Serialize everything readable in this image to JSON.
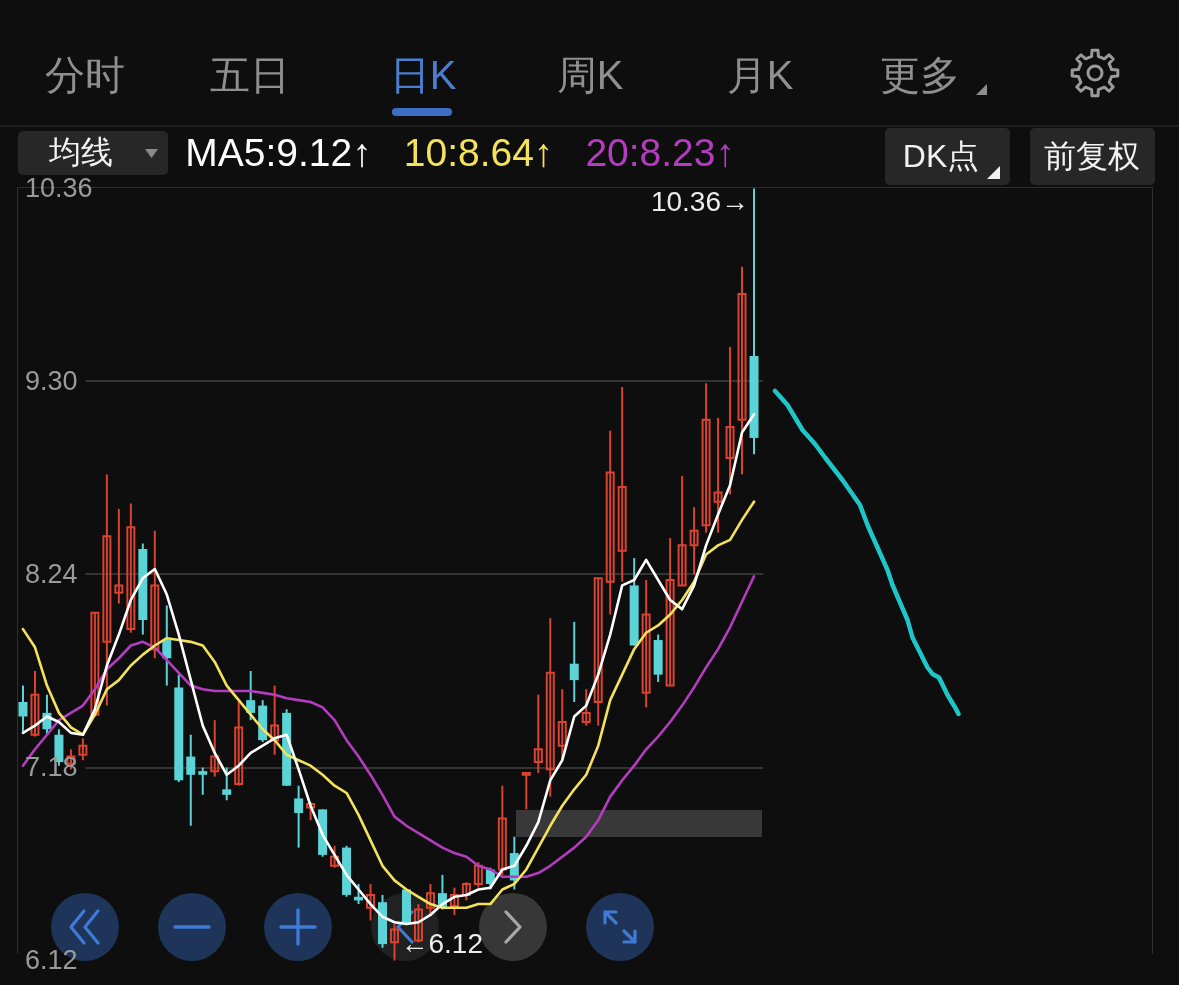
{
  "chart_data": {
    "type": "candlestick",
    "categories": [
      null,
      null,
      null,
      null,
      null,
      null,
      null,
      null,
      null,
      null,
      null,
      null,
      null,
      null,
      null,
      null,
      null,
      null,
      null,
      null,
      null,
      null,
      null,
      null,
      null,
      null,
      null,
      null,
      null,
      null,
      null,
      null,
      null,
      null,
      null,
      null,
      null,
      null,
      null,
      null,
      null,
      null,
      null,
      null,
      null,
      null,
      null,
      null,
      null,
      null,
      null,
      null,
      null,
      null,
      null,
      null,
      null,
      null,
      null,
      null,
      null,
      null
    ],
    "ohlc": [
      [
        7.54,
        7.63,
        7.37,
        7.46
      ],
      [
        7.36,
        7.71,
        7.35,
        7.58
      ],
      [
        7.48,
        7.58,
        7.36,
        7.39
      ],
      [
        7.36,
        7.39,
        7.19,
        7.21
      ],
      [
        7.2,
        7.28,
        7.17,
        7.24
      ],
      [
        7.25,
        7.34,
        7.22,
        7.3
      ],
      [
        7.47,
        8.03,
        7.46,
        8.03
      ],
      [
        7.87,
        8.79,
        7.52,
        8.45
      ],
      [
        8.14,
        8.6,
        8.08,
        8.18
      ],
      [
        7.94,
        8.63,
        7.92,
        8.5
      ],
      [
        8.38,
        8.41,
        7.91,
        7.99
      ],
      [
        7.83,
        8.48,
        7.78,
        8.18
      ],
      [
        7.88,
        8.07,
        7.63,
        7.78
      ],
      [
        7.62,
        7.69,
        7.1,
        7.11
      ],
      [
        7.24,
        7.36,
        6.86,
        7.14
      ],
      [
        7.16,
        7.18,
        7.03,
        7.14
      ],
      [
        7.16,
        7.44,
        7.13,
        7.24
      ],
      [
        7.06,
        7.18,
        7.0,
        7.03
      ],
      [
        7.09,
        7.54,
        7.08,
        7.4
      ],
      [
        7.55,
        7.71,
        7.44,
        7.48
      ],
      [
        7.52,
        7.55,
        7.32,
        7.33
      ],
      [
        7.33,
        7.63,
        7.25,
        7.41
      ],
      [
        7.48,
        7.5,
        7.08,
        7.08
      ],
      [
        7.01,
        7.08,
        6.74,
        6.93
      ],
      [
        6.96,
        6.99,
        6.89,
        6.98
      ],
      [
        6.95,
        6.95,
        6.69,
        6.7
      ],
      [
        6.64,
        6.75,
        6.63,
        6.69
      ],
      [
        6.74,
        6.75,
        6.47,
        6.48
      ],
      [
        6.47,
        6.54,
        6.43,
        6.45
      ],
      [
        6.41,
        6.54,
        6.34,
        6.48
      ],
      [
        6.44,
        6.48,
        6.19,
        6.21
      ],
      [
        6.22,
        6.32,
        6.12,
        6.29
      ],
      [
        6.51,
        6.51,
        6.32,
        6.32
      ],
      [
        6.23,
        6.43,
        6.22,
        6.4
      ],
      [
        6.41,
        6.54,
        6.37,
        6.49
      ],
      [
        6.49,
        6.59,
        6.4,
        6.41
      ],
      [
        6.42,
        6.52,
        6.37,
        6.48
      ],
      [
        6.48,
        6.55,
        6.45,
        6.54
      ],
      [
        6.54,
        6.66,
        6.52,
        6.64
      ],
      [
        6.62,
        6.63,
        6.51,
        6.54
      ],
      [
        6.62,
        7.08,
        6.59,
        6.9
      ],
      [
        6.71,
        6.8,
        6.51,
        6.56
      ],
      [
        7.14,
        7.15,
        6.95,
        7.15
      ],
      [
        7.21,
        7.58,
        7.15,
        7.28
      ],
      [
        7.17,
        8.0,
        7.02,
        7.7
      ],
      [
        7.3,
        7.61,
        7.22,
        7.43
      ],
      [
        7.75,
        7.98,
        7.54,
        7.66
      ],
      [
        7.43,
        7.61,
        7.41,
        7.48
      ],
      [
        7.54,
        8.22,
        7.41,
        8.22
      ],
      [
        8.2,
        9.03,
        8.02,
        8.8
      ],
      [
        8.37,
        9.27,
        8.2,
        8.72
      ],
      [
        8.18,
        8.33,
        7.85,
        7.85
      ],
      [
        7.59,
        8.21,
        7.51,
        8.02
      ],
      [
        7.88,
        7.91,
        7.65,
        7.69
      ],
      [
        7.63,
        8.44,
        7.63,
        8.21
      ],
      [
        8.18,
        8.78,
        8.18,
        8.4
      ],
      [
        8.4,
        8.61,
        8.24,
        8.48
      ],
      [
        8.51,
        9.29,
        8.47,
        9.09
      ],
      [
        8.64,
        9.1,
        8.47,
        8.69
      ],
      [
        8.88,
        9.49,
        8.68,
        9.05
      ],
      [
        9.09,
        9.93,
        8.79,
        9.78
      ],
      [
        9.44,
        10.36,
        8.9,
        8.99
      ]
    ],
    "colors": [
      "#5cd3d6",
      "#d9432f",
      "#5cd3d6",
      "#5cd3d6",
      "#d9432f",
      "#d9432f",
      "#d9432f",
      "#d9432f",
      "#d9432f",
      "#d9432f",
      "#5cd3d6",
      "#d9432f",
      "#5cd3d6",
      "#5cd3d6",
      "#5cd3d6",
      "#5cd3d6",
      "#d9432f",
      "#5cd3d6",
      "#d9432f",
      "#5cd3d6",
      "#5cd3d6",
      "#d9432f",
      "#5cd3d6",
      "#5cd3d6",
      "#d9432f",
      "#5cd3d6",
      "#d9432f",
      "#5cd3d6",
      "#5cd3d6",
      "#d9432f",
      "#5cd3d6",
      "#d9432f",
      "#5cd3d6",
      "#d9432f",
      "#d9432f",
      "#5cd3d6",
      "#d9432f",
      "#d9432f",
      "#d9432f",
      "#5cd3d6",
      "#d9432f",
      "#5cd3d6",
      "#d9432f",
      "#d9432f",
      "#d9432f",
      "#d9432f",
      "#5cd3d6",
      "#d9432f",
      "#d9432f",
      "#d9432f",
      "#d9432f",
      "#5cd3d6",
      "#d9432f",
      "#5cd3d6",
      "#d9432f",
      "#d9432f",
      "#d9432f",
      "#d9432f",
      "#d9432f",
      "#d9432f",
      "#d9432f",
      "#5cd3d6"
    ],
    "series": [
      {
        "type": "line",
        "name": "MA5:9.12↑",
        "color": "#ffffff",
        "values": [
          7.37,
          7.41,
          7.46,
          7.43,
          7.37,
          7.36,
          7.5,
          7.74,
          7.91,
          8.1,
          8.22,
          8.27,
          8.13,
          7.91,
          7.66,
          7.41,
          7.26,
          7.14,
          7.19,
          7.26,
          7.3,
          7.34,
          7.36,
          7.17,
          6.97,
          6.81,
          6.7,
          6.59,
          6.51,
          6.43,
          6.36,
          6.33,
          6.32,
          6.33,
          6.37,
          6.43,
          6.47,
          6.48,
          6.51,
          6.52,
          6.62,
          6.64,
          6.75,
          6.88,
          7.11,
          7.22,
          7.46,
          7.52,
          7.69,
          7.91,
          8.18,
          8.21,
          8.32,
          8.21,
          8.1,
          8.05,
          8.18,
          8.4,
          8.57,
          8.73,
          9.02,
          9.12
        ]
      },
      {
        "type": "line",
        "name": "10:8.64↑",
        "color": "#f4e25a",
        "values": [
          7.94,
          7.84,
          7.63,
          7.48,
          7.4,
          7.36,
          7.47,
          7.61,
          7.66,
          7.74,
          7.8,
          7.85,
          7.89,
          7.88,
          7.87,
          7.85,
          7.76,
          7.63,
          7.55,
          7.47,
          7.39,
          7.33,
          7.25,
          7.22,
          7.19,
          7.14,
          7.08,
          7.04,
          6.92,
          6.78,
          6.64,
          6.56,
          6.51,
          6.47,
          6.43,
          6.41,
          6.41,
          6.41,
          6.43,
          6.43,
          6.51,
          6.54,
          6.62,
          6.74,
          6.86,
          6.97,
          7.06,
          7.14,
          7.3,
          7.55,
          7.69,
          7.83,
          7.92,
          7.96,
          8.02,
          8.1,
          8.2,
          8.35,
          8.4,
          8.43,
          8.54,
          8.64
        ]
      },
      {
        "type": "line",
        "name": "20:8.23↑",
        "color": "#b43cc0",
        "values": [
          7.19,
          7.28,
          7.36,
          7.44,
          7.48,
          7.52,
          7.61,
          7.72,
          7.78,
          7.85,
          7.87,
          7.84,
          7.77,
          7.7,
          7.63,
          7.61,
          7.6,
          7.6,
          7.6,
          7.6,
          7.59,
          7.58,
          7.56,
          7.55,
          7.54,
          7.51,
          7.44,
          7.33,
          7.24,
          7.14,
          7.03,
          6.91,
          6.86,
          6.82,
          6.78,
          6.74,
          6.71,
          6.69,
          6.64,
          6.62,
          6.58,
          6.58,
          6.58,
          6.6,
          6.64,
          6.69,
          6.74,
          6.8,
          6.89,
          7.02,
          7.11,
          7.19,
          7.28,
          7.35,
          7.43,
          7.52,
          7.62,
          7.73,
          7.83,
          7.95,
          8.09,
          8.23
        ]
      }
    ],
    "ylim": [
      6.12,
      10.36
    ],
    "yticks": [
      6.12,
      7.18,
      8.24,
      {
        "value": 9.3,
        "label": "9.30"
      },
      10.36
    ],
    "tick_labels": "y",
    "grid": "y",
    "legend": "top right",
    "marker": "none",
    "annotations": [
      "分时",
      "五日",
      "日K",
      "周K",
      "月K",
      "更多",
      "均线",
      "DK点",
      "前复权",
      "10.36→",
      "←6.12"
    ]
  }
}
